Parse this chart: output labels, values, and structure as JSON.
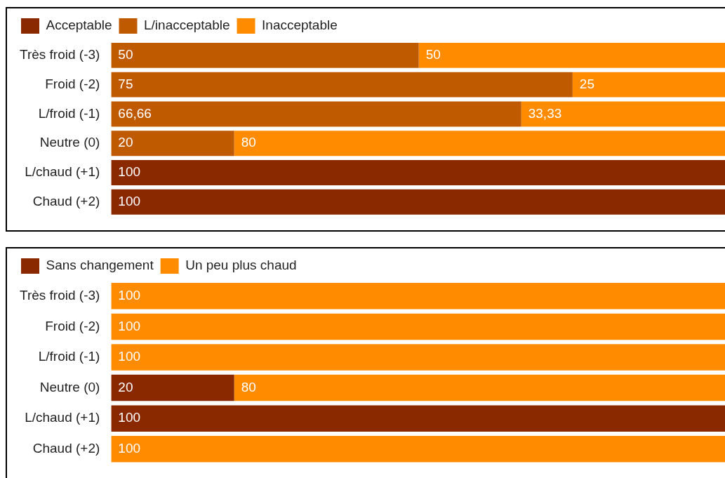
{
  "chart_data": [
    {
      "type": "bar",
      "orientation": "horizontal",
      "stacked": true,
      "legend": "top left",
      "tick_labels": "y",
      "xlim": [
        0,
        100
      ],
      "categories": [
        "Très froid (-3)",
        "Froid (-2)",
        "L/froid (-1)",
        "Neutre (0)",
        "L/chaud (+1)",
        "Chaud (+2)"
      ],
      "series": [
        {
          "name": "Acceptable",
          "color": "#8a2900",
          "values": [
            null,
            null,
            null,
            null,
            100,
            100
          ],
          "value_labels": [
            null,
            null,
            null,
            null,
            "100",
            "100"
          ]
        },
        {
          "name": "L/inacceptable",
          "color": "#c05a00",
          "values": [
            50,
            75,
            66.66,
            20,
            null,
            null
          ],
          "value_labels": [
            "50",
            "75",
            "66,66",
            "20",
            null,
            null
          ]
        },
        {
          "name": "Inacceptable",
          "color": "#ff8c00",
          "values": [
            50,
            25,
            33.33,
            80,
            null,
            null
          ],
          "value_labels": [
            "50",
            "25",
            "33,33",
            "80",
            null,
            null
          ]
        }
      ]
    },
    {
      "type": "bar",
      "orientation": "horizontal",
      "stacked": true,
      "legend": "top left",
      "tick_labels": "y",
      "xlim": [
        0,
        100
      ],
      "categories": [
        "Très froid (-3)",
        "Froid (-2)",
        "L/froid (-1)",
        "Neutre (0)",
        "L/chaud (+1)",
        "Chaud (+2)"
      ],
      "series": [
        {
          "name": "Sans changement",
          "color": "#8a2900",
          "values": [
            null,
            null,
            null,
            20,
            100,
            null
          ],
          "value_labels": [
            null,
            null,
            null,
            "20",
            "100",
            null
          ]
        },
        {
          "name": "Un peu plus chaud",
          "color": "#ff8c00",
          "values": [
            100,
            100,
            100,
            80,
            null,
            100
          ],
          "value_labels": [
            "100",
            "100",
            "100",
            "80",
            null,
            "100"
          ]
        }
      ]
    }
  ]
}
